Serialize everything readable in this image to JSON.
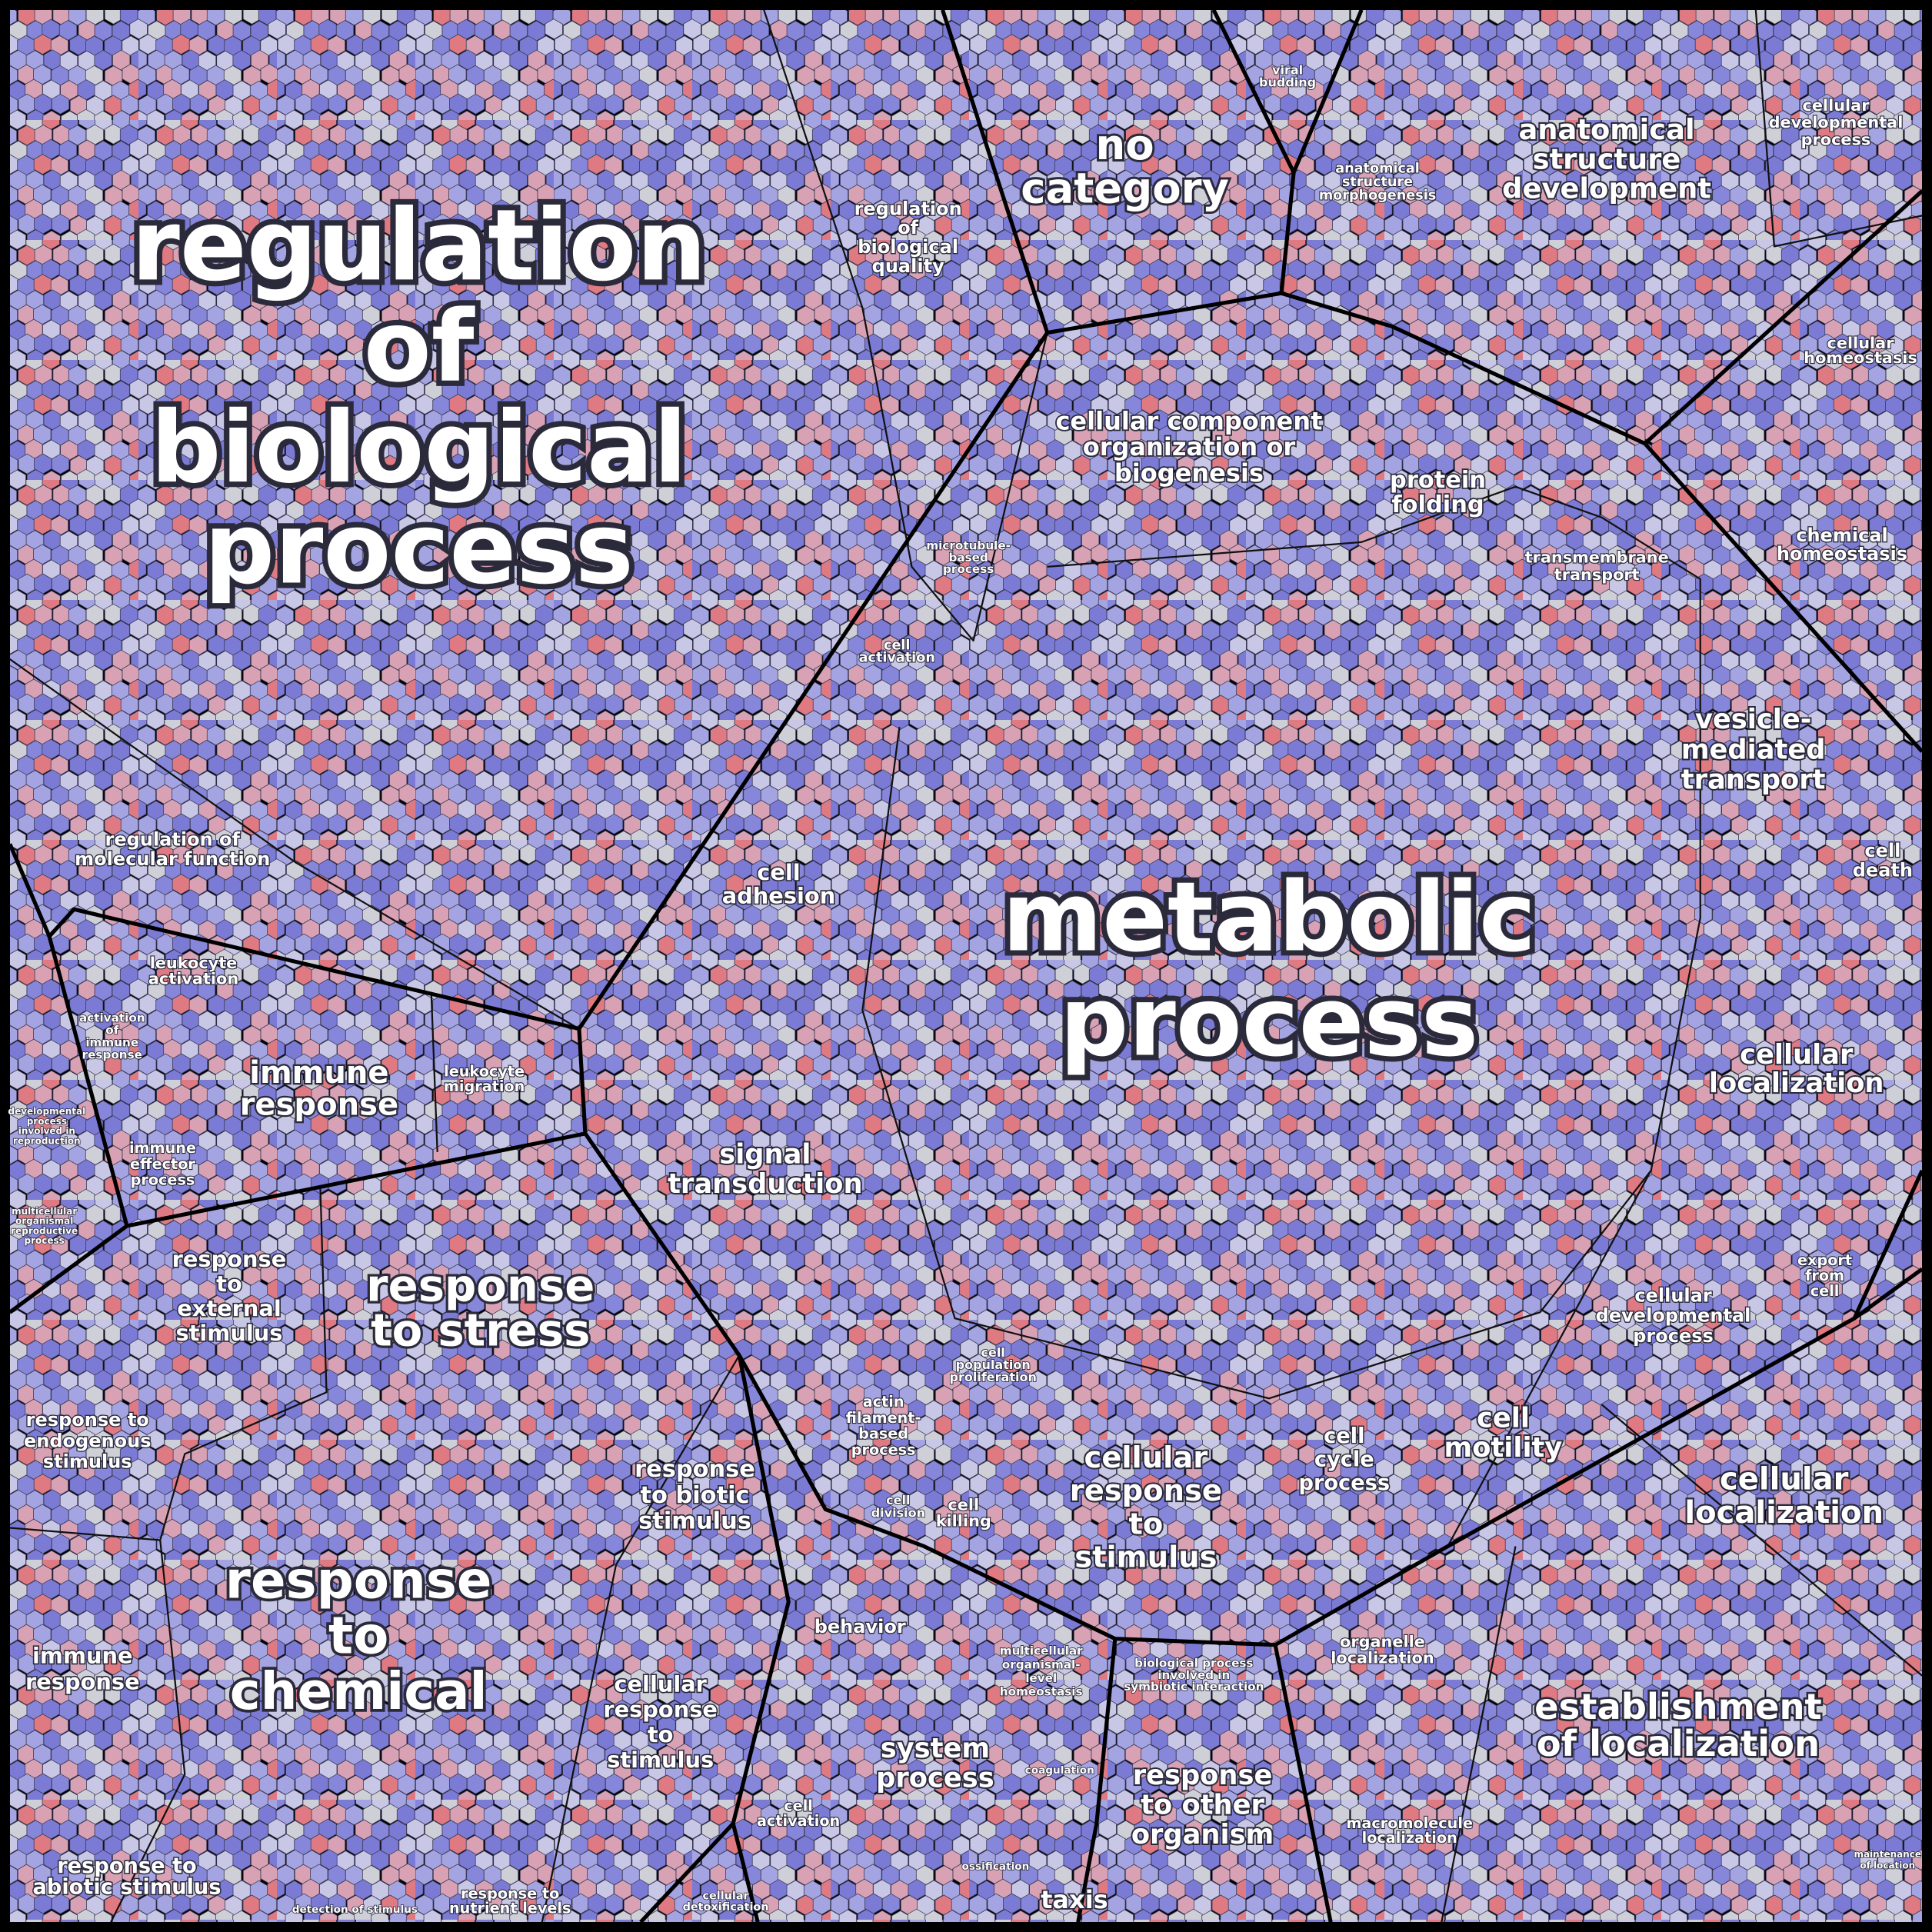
{
  "regions": [
    {
      "lines": [
        "regulation",
        "of",
        "biological",
        "process"
      ]
    },
    {
      "lines": [
        "no",
        "category"
      ]
    },
    {
      "lines": [
        "regulation",
        "of",
        "biological",
        "quality"
      ]
    },
    {
      "lines": [
        "viral",
        "budding"
      ]
    },
    {
      "lines": [
        "anatomical",
        "structure",
        "morphogenesis"
      ]
    },
    {
      "lines": [
        "anatomical",
        "structure",
        "development"
      ]
    },
    {
      "lines": [
        "cellular",
        "developmental",
        "process"
      ]
    },
    {
      "lines": [
        "cellular",
        "homeostasis"
      ]
    },
    {
      "lines": [
        "chemical",
        "homeostasis"
      ]
    },
    {
      "lines": [
        "cellular component",
        "organization or",
        "biogenesis"
      ]
    },
    {
      "lines": [
        "protein",
        "folding"
      ]
    },
    {
      "lines": [
        "transmembrane",
        "transport"
      ]
    },
    {
      "lines": [
        "microtubule-",
        "based",
        "process"
      ]
    },
    {
      "lines": [
        "cell",
        "activation"
      ]
    },
    {
      "lines": [
        "vesicle-",
        "mediated",
        "transport"
      ]
    },
    {
      "lines": [
        "cell",
        "death"
      ]
    },
    {
      "lines": [
        "metabolic",
        "process"
      ]
    },
    {
      "lines": [
        "cellular",
        "localization"
      ]
    },
    {
      "lines": [
        "regulation of",
        "molecular function"
      ]
    },
    {
      "lines": [
        "cell",
        "adhesion"
      ]
    },
    {
      "lines": [
        "leukocyte",
        "activation"
      ]
    },
    {
      "lines": [
        "activation",
        "of",
        "immune",
        "response"
      ]
    },
    {
      "lines": [
        "immune",
        "response"
      ]
    },
    {
      "lines": [
        "leukocyte",
        "migration"
      ]
    },
    {
      "lines": [
        "immune",
        "effector",
        "process"
      ]
    },
    {
      "lines": [
        "developmental",
        "process",
        "involved in",
        "reproduction"
      ]
    },
    {
      "lines": [
        "multicellular",
        "organismal",
        "reproductive",
        "process"
      ]
    },
    {
      "lines": [
        "signal",
        "transduction"
      ]
    },
    {
      "lines": [
        "response",
        "to",
        "external",
        "stimulus"
      ]
    },
    {
      "lines": [
        "response",
        "to stress"
      ]
    },
    {
      "lines": [
        "export",
        "from",
        "cell"
      ]
    },
    {
      "lines": [
        "cellular",
        "developmental",
        "process"
      ]
    },
    {
      "lines": [
        "cell",
        "population",
        "proliferation"
      ]
    },
    {
      "lines": [
        "actin",
        "filament-",
        "based",
        "process"
      ]
    },
    {
      "lines": [
        "cell",
        "motility"
      ]
    },
    {
      "lines": [
        "cell",
        "cycle",
        "process"
      ]
    },
    {
      "lines": [
        "cellular",
        "response",
        "to",
        "stimulus"
      ]
    },
    {
      "lines": [
        "cellular",
        "localization"
      ]
    },
    {
      "lines": [
        "response to",
        "endogenous",
        "stimulus"
      ]
    },
    {
      "lines": [
        "response",
        "to biotic",
        "stimulus"
      ]
    },
    {
      "lines": [
        "cell",
        "division"
      ]
    },
    {
      "lines": [
        "cell",
        "killing"
      ]
    },
    {
      "lines": [
        "response",
        "to",
        "chemical"
      ]
    },
    {
      "lines": [
        "immune",
        "response"
      ]
    },
    {
      "lines": [
        "behavior"
      ]
    },
    {
      "lines": [
        "multicellular",
        "organismal-",
        "level",
        "homeostasis"
      ]
    },
    {
      "lines": [
        "biological process",
        "involved in",
        "symbiotic interaction"
      ]
    },
    {
      "lines": [
        "organelle",
        "localization"
      ]
    },
    {
      "lines": [
        "establishment",
        "of localization"
      ]
    },
    {
      "lines": [
        "cellular",
        "response",
        "to",
        "stimulus"
      ]
    },
    {
      "lines": [
        "system",
        "process"
      ]
    },
    {
      "lines": [
        "coagulation"
      ]
    },
    {
      "lines": [
        "response",
        "to other",
        "organism"
      ]
    },
    {
      "lines": [
        "cell",
        "activation"
      ]
    },
    {
      "lines": [
        "macromolecule",
        "localization"
      ]
    },
    {
      "lines": [
        "response to",
        "abiotic stimulus"
      ]
    },
    {
      "lines": [
        "response to",
        "nutrient levels"
      ]
    },
    {
      "lines": [
        "taxis"
      ]
    },
    {
      "lines": [
        "ossification"
      ]
    },
    {
      "lines": [
        "detection of stimulus"
      ]
    },
    {
      "lines": [
        "cellular",
        "detoxification"
      ]
    },
    {
      "lines": [
        "maintenance",
        "of location"
      ]
    }
  ]
}
